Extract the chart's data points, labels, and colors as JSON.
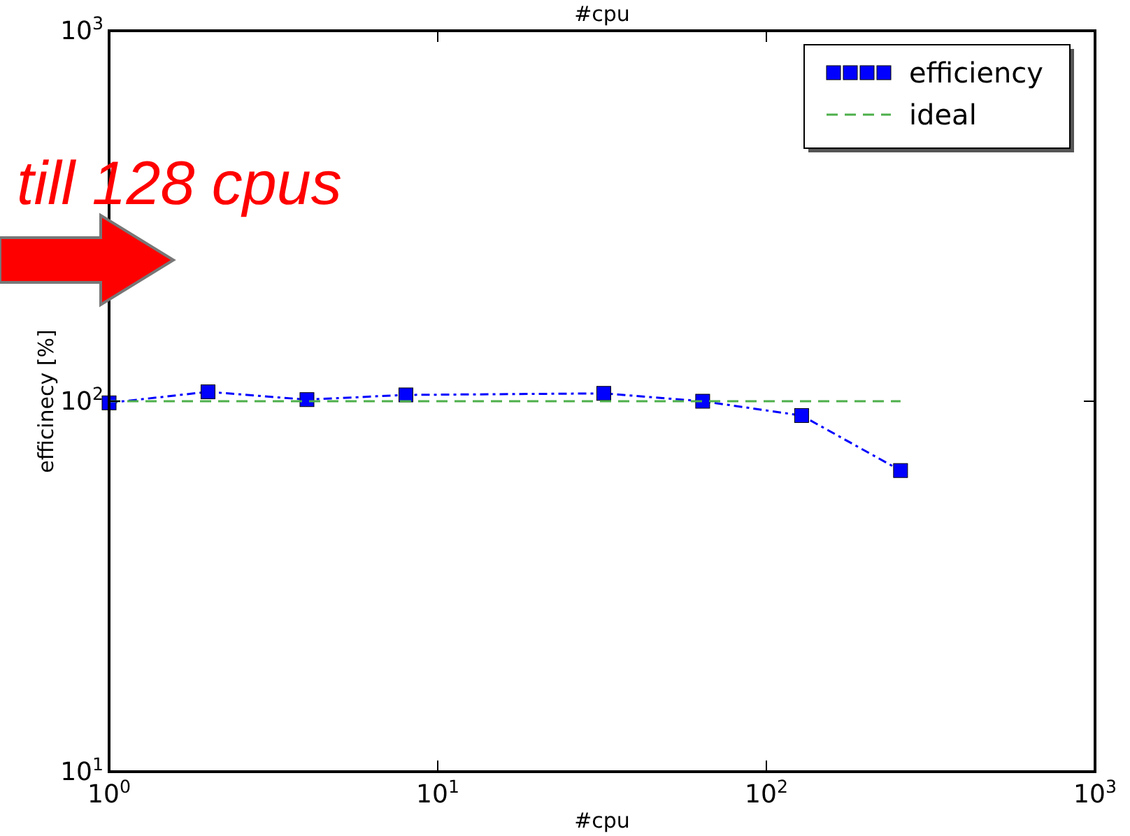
{
  "chart_data": {
    "type": "line",
    "title": "#cpu",
    "xlabel": "#cpu",
    "ylabel": "efficinecy [%]",
    "log": "xy",
    "xlim": [
      1,
      1000
    ],
    "ylim": [
      10,
      1000
    ],
    "xticks": [
      {
        "value": 1,
        "label": "10$^{0}$"
      },
      {
        "value": 10,
        "label": "10$^{1}$"
      },
      {
        "value": 100,
        "label": "10$^{2}$"
      },
      {
        "value": 1000,
        "label": "10$^{3}$"
      }
    ],
    "yticks": [
      {
        "value": 10,
        "label": "10$^{1}$"
      },
      {
        "value": 100,
        "label": "10$^{2}$"
      },
      {
        "value": 1000,
        "label": "10$^{3}$"
      }
    ],
    "grid": false,
    "legend": "top right",
    "annotations": [
      "till 128 cpus"
    ],
    "series": [
      {
        "name": "efficiency",
        "color": "#0000ff",
        "x": [
          1,
          2,
          4,
          8,
          32,
          64,
          128,
          256
        ],
        "values": [
          99,
          106,
          101,
          104,
          105,
          100,
          91.5,
          65
        ],
        "marker": "square",
        "line_style": "dashdot"
      },
      {
        "name": "ideal",
        "color": "#4daf4a",
        "x": [
          1,
          256
        ],
        "values": [
          100,
          100
        ],
        "marker": "none",
        "line_style": "dashed"
      }
    ]
  }
}
